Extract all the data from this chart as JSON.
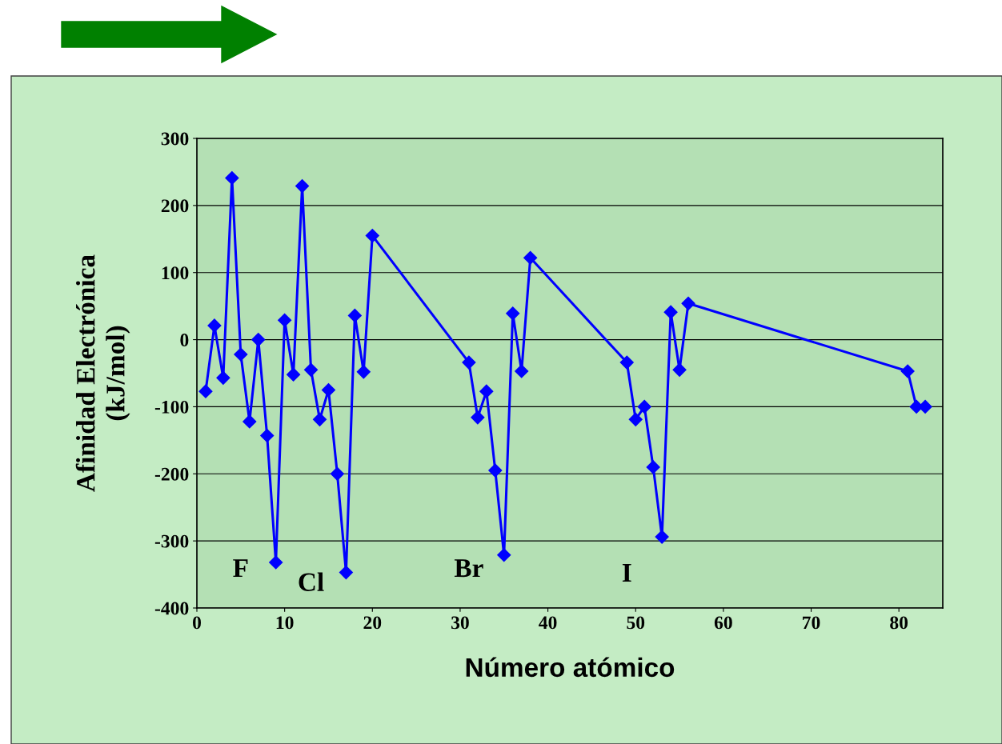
{
  "chart_data": {
    "type": "line",
    "xlabel": "Número atómico",
    "ylabel": "Afinidad Electrónica\n(kJ/mol)",
    "xlim": [
      0,
      85
    ],
    "xticks": [
      0,
      10,
      20,
      30,
      40,
      50,
      60,
      70,
      80
    ],
    "ylim": [
      -400,
      300
    ],
    "yticks": [
      -400,
      -300,
      -200,
      -100,
      0,
      100,
      200,
      300
    ],
    "grid": "y",
    "marker": "diamond",
    "line_style": "solid",
    "legend": false,
    "series": [
      {
        "color": "#0000ff",
        "x": [
          1,
          2,
          3,
          4,
          5,
          6,
          7,
          8,
          9,
          10,
          11,
          12,
          13,
          14,
          15,
          16,
          17,
          18,
          19,
          20,
          31,
          32,
          33,
          34,
          35,
          36,
          37,
          38,
          49,
          50,
          51,
          52,
          53,
          54,
          55,
          56,
          81,
          82,
          83
        ],
        "values": [
          -77,
          21,
          -57,
          241,
          -22,
          -122,
          0,
          -143,
          -332,
          29,
          -52,
          229,
          -45,
          -119,
          -75,
          -200,
          -347,
          36,
          -48,
          155,
          -34,
          -116,
          -77,
          -195,
          -321,
          39,
          -47,
          122,
          -34,
          -119,
          -100,
          -190,
          -294,
          41,
          -45,
          54,
          -47,
          -100,
          -100
        ]
      }
    ],
    "annotations": [
      "F",
      "Cl",
      "Br",
      "I"
    ]
  }
}
